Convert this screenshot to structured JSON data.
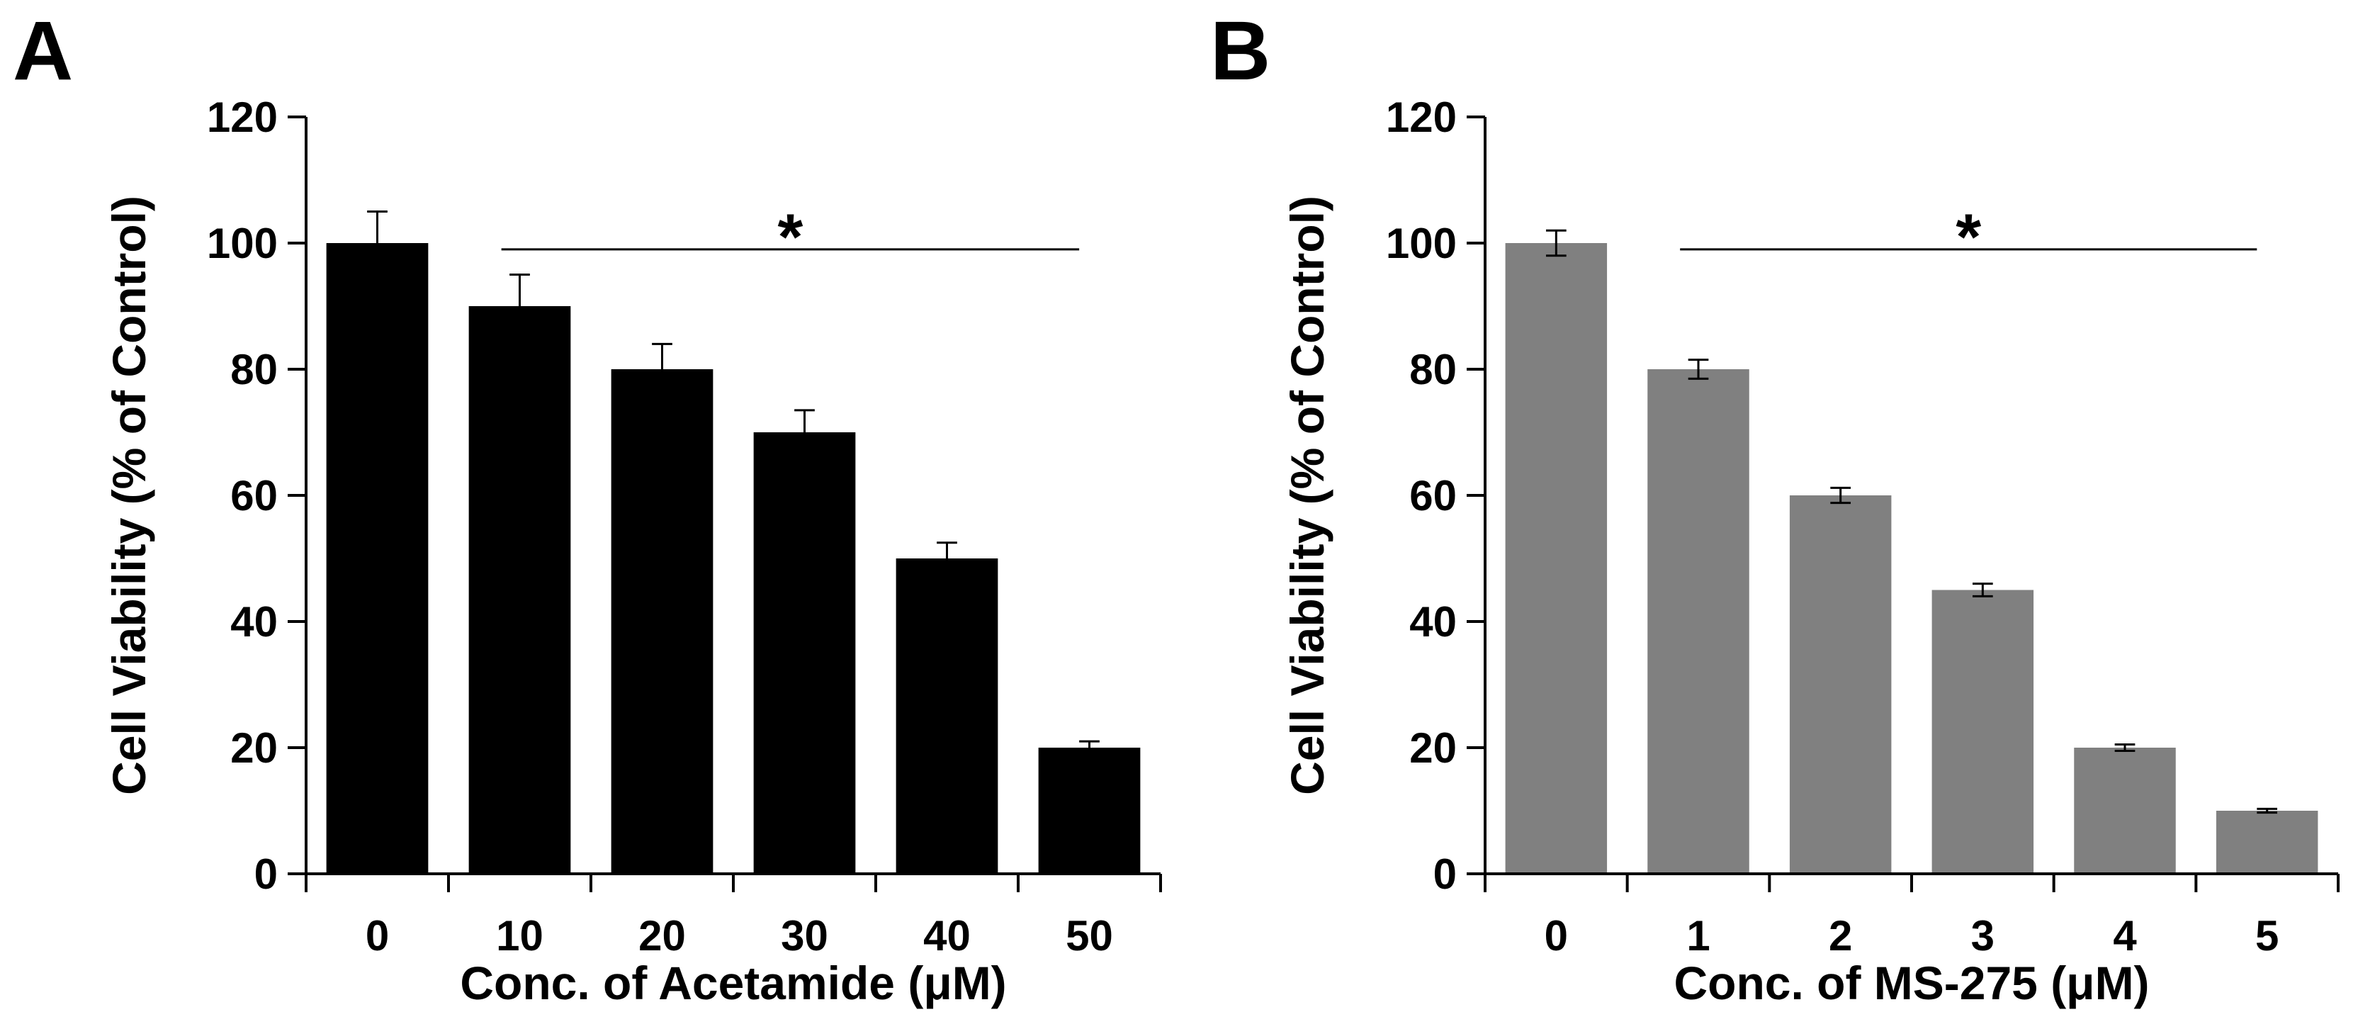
{
  "chart_data": [
    {
      "type": "bar",
      "panel": "A",
      "title": "",
      "xlabel": "Conc. of Acetamide (μM)",
      "ylabel": "Cell Viability (% of Control)",
      "ylim": [
        0,
        120
      ],
      "yticks": [
        0,
        20,
        40,
        60,
        80,
        100,
        120
      ],
      "categories": [
        "0",
        "10",
        "20",
        "30",
        "40",
        "50"
      ],
      "values": [
        100,
        90,
        80,
        70,
        50,
        20
      ],
      "errors": [
        5,
        5,
        4,
        3.5,
        2.5,
        1
      ],
      "bar_color": "#000000",
      "significance": {
        "label": "*",
        "from_index": 1,
        "to_index": 5,
        "y": 99
      }
    },
    {
      "type": "bar",
      "panel": "B",
      "title": "",
      "xlabel": "Conc. of MS-275 (μM)",
      "ylabel": "Cell Viability (% of Control)",
      "ylim": [
        0,
        120
      ],
      "yticks": [
        0,
        20,
        40,
        60,
        80,
        100,
        120
      ],
      "categories": [
        "0",
        "1",
        "2",
        "3",
        "4",
        "5"
      ],
      "values": [
        100,
        80,
        60,
        45,
        20,
        10
      ],
      "errors": [
        2,
        1.5,
        1.2,
        1,
        0.5,
        0.3
      ],
      "bar_color": "#808080",
      "significance": {
        "label": "*",
        "from_index": 1,
        "to_index": 5,
        "y": 99
      }
    }
  ]
}
